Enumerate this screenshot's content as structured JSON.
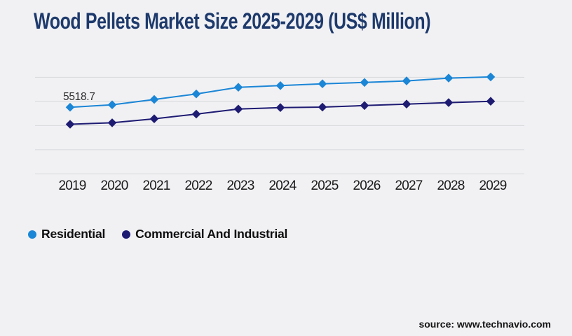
{
  "title": "Wood Pellets Market Size 2025-2029 (US$ Million)",
  "source": "source: www.technavio.com",
  "colors": {
    "background": "#f1f1f4",
    "title": "#1e3a6c",
    "gridline": "#d7d8da",
    "axis_label": "#1a1a1a",
    "residential": "#1b86d6",
    "commercial_and_industrial": "#1e1b72"
  },
  "legend": {
    "position": "bottom-left",
    "items": [
      {
        "label": "Residential",
        "color": "#1b86d6",
        "marker": "circle"
      },
      {
        "label": "Commercial And Industrial",
        "color": "#1e1b72",
        "marker": "circle"
      }
    ]
  },
  "chart_data": {
    "type": "line",
    "title": "Wood Pellets Market Size 2025-2029 (US$ Million)",
    "x": [
      "2019",
      "2020",
      "2021",
      "2022",
      "2023",
      "2024",
      "2025",
      "2026",
      "2027",
      "2028",
      "2029"
    ],
    "series": [
      {
        "name": "Residential",
        "color": "#1b86d6",
        "marker": "diamond",
        "values": [
          5518.7,
          5720,
          6160,
          6620,
          7170,
          7310,
          7460,
          7570,
          7700,
          7930,
          8030
        ]
      },
      {
        "name": "Commercial And Industrial",
        "color": "#1e1b72",
        "marker": "diamond",
        "values": [
          4110,
          4230,
          4560,
          4950,
          5370,
          5490,
          5530,
          5660,
          5780,
          5900,
          6010
        ]
      }
    ],
    "ylim": [
      0,
      8000
    ],
    "gridline_values": [
      0,
      2000,
      4000,
      6000,
      8000
    ],
    "grid": "horizontal gridlines only, no y-axis tick labels",
    "xlabel": "",
    "ylabel": "",
    "point_label": {
      "series": "Residential",
      "x": "2019",
      "text": "5518.7"
    },
    "legend_position": "bottom-left"
  }
}
